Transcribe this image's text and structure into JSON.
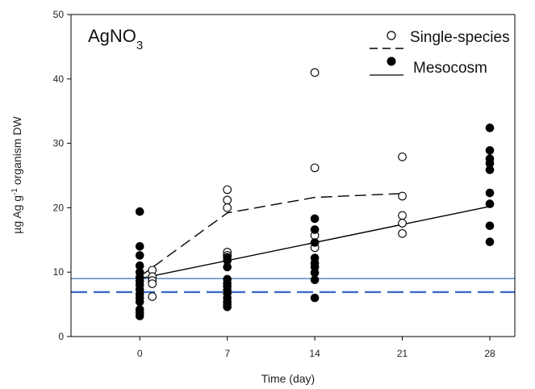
{
  "chart_data": {
    "type": "scatter",
    "title": "AgNO",
    "title_subscript": "3",
    "xlabel": "Time (day)",
    "ylabel_pre": "µg Ag g",
    "ylabel_sup": "-1",
    "ylabel_post": " organism DW",
    "xlim": [
      -5.5,
      30
    ],
    "ylim": [
      0,
      50
    ],
    "xticks": [
      0,
      7,
      14,
      21,
      28
    ],
    "yticks": [
      0,
      10,
      20,
      30,
      40,
      50
    ],
    "legend_placement": "top-right",
    "series": [
      {
        "name": "Single-species",
        "marker": "open-circle",
        "line_style": "dashed",
        "points": [
          [
            1,
            10.3
          ],
          [
            1,
            9.3
          ],
          [
            1,
            8.7
          ],
          [
            1,
            8.2
          ],
          [
            1,
            6.2
          ],
          [
            7,
            22.8
          ],
          [
            7,
            21.2
          ],
          [
            7,
            20.0
          ],
          [
            7,
            13.1
          ],
          [
            7,
            12.6
          ],
          [
            14,
            41.0
          ],
          [
            14,
            26.2
          ],
          [
            14,
            15.7
          ],
          [
            14,
            13.8
          ],
          [
            21,
            27.9
          ],
          [
            21,
            21.8
          ],
          [
            21,
            18.8
          ],
          [
            21,
            17.6
          ],
          [
            21,
            16.0
          ]
        ],
        "trend": [
          [
            0,
            9.3
          ],
          [
            7,
            19.2
          ],
          [
            14,
            21.6
          ],
          [
            21,
            22.2
          ]
        ]
      },
      {
        "name": "Mesocosm",
        "marker": "filled-circle",
        "line_style": "solid",
        "points": [
          [
            0,
            19.4
          ],
          [
            0,
            14.0
          ],
          [
            0,
            12.6
          ],
          [
            0,
            11.0
          ],
          [
            0,
            10.0
          ],
          [
            0,
            9.2
          ],
          [
            0,
            8.6
          ],
          [
            0,
            8.0
          ],
          [
            0,
            7.3
          ],
          [
            0,
            6.6
          ],
          [
            0,
            6.0
          ],
          [
            0,
            5.4
          ],
          [
            0,
            4.2
          ],
          [
            0,
            3.7
          ],
          [
            0,
            3.2
          ],
          [
            7,
            12.3
          ],
          [
            7,
            11.8
          ],
          [
            7,
            10.8
          ],
          [
            7,
            8.9
          ],
          [
            7,
            8.3
          ],
          [
            7,
            7.8
          ],
          [
            7,
            7.2
          ],
          [
            7,
            6.7
          ],
          [
            7,
            6.0
          ],
          [
            7,
            5.4
          ],
          [
            7,
            5.0
          ],
          [
            7,
            4.6
          ],
          [
            14,
            18.3
          ],
          [
            14,
            16.6
          ],
          [
            14,
            14.6
          ],
          [
            14,
            12.2
          ],
          [
            14,
            11.4
          ],
          [
            14,
            10.8
          ],
          [
            14,
            9.9
          ],
          [
            14,
            8.8
          ],
          [
            14,
            6.0
          ],
          [
            28,
            32.4
          ],
          [
            28,
            28.9
          ],
          [
            28,
            27.6
          ],
          [
            28,
            26.9
          ],
          [
            28,
            25.9
          ],
          [
            28,
            22.3
          ],
          [
            28,
            20.6
          ],
          [
            28,
            17.2
          ],
          [
            28,
            14.7
          ]
        ],
        "trend": [
          [
            0,
            9.0
          ],
          [
            28,
            20.2
          ]
        ]
      }
    ],
    "reference_lines": [
      {
        "y": 9.0,
        "style": "solid",
        "color": "#4a7fc1"
      },
      {
        "y": 6.9,
        "style": "dashed",
        "color": "#3a6cc9"
      }
    ],
    "colors": {
      "marker": "#000000",
      "axis": "#000000",
      "ref_solid": "#4a7fc1",
      "ref_dashed": "#3a6cc9"
    }
  }
}
